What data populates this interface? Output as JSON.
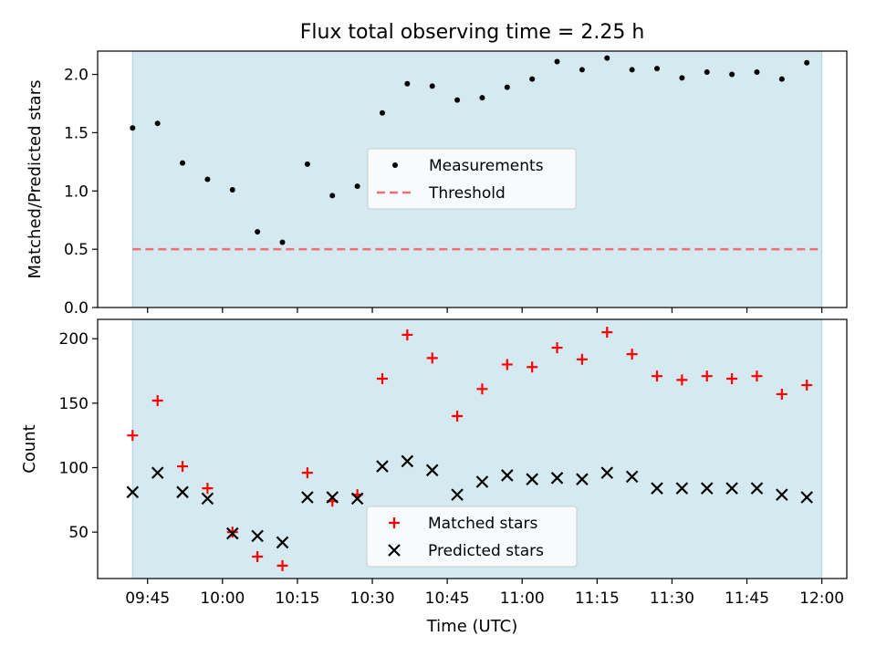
{
  "chart_data": [
    {
      "type": "scatter",
      "title": "Flux total observing time = 2.25 h",
      "ylabel": "Matched/Predicted stars",
      "xlabel": "",
      "xlim": [
        "09:35",
        "12:05"
      ],
      "ylim": [
        0,
        2.2
      ],
      "yticks": [
        0.0,
        0.5,
        1.0,
        1.5,
        2.0
      ],
      "ytick_labels": [
        "0.0",
        "0.5",
        "1.0",
        "1.5",
        "2.0"
      ],
      "xtick_labels": [],
      "shaded_span": [
        "09:42",
        "12:00"
      ],
      "shaded_color": "#d4eaf0",
      "legend": {
        "placement": "center"
      },
      "series": [
        {
          "name": "Measurements",
          "color": "#000000",
          "marker": "dot",
          "x": [
            "09:42",
            "09:47",
            "09:52",
            "09:57",
            "10:02",
            "10:07",
            "10:12",
            "10:17",
            "10:22",
            "10:27",
            "10:32",
            "10:37",
            "10:42",
            "10:47",
            "10:52",
            "10:57",
            "11:02",
            "11:07",
            "11:12",
            "11:17",
            "11:22",
            "11:27",
            "11:32",
            "11:37",
            "11:42",
            "11:47",
            "11:52",
            "11:57"
          ],
          "y": [
            1.54,
            1.58,
            1.24,
            1.1,
            1.01,
            0.65,
            0.56,
            1.23,
            0.96,
            1.04,
            1.67,
            1.92,
            1.9,
            1.78,
            1.8,
            1.89,
            1.96,
            2.11,
            2.04,
            2.14,
            2.04,
            2.05,
            1.97,
            2.02,
            2.0,
            2.02,
            1.96,
            2.1
          ]
        },
        {
          "name": "Threshold",
          "color": "#f07070",
          "line_style": "dashed",
          "x": [
            "09:42",
            "12:00"
          ],
          "y": [
            0.5,
            0.5
          ]
        }
      ]
    },
    {
      "type": "scatter",
      "title": "",
      "ylabel": "Count",
      "xlabel": "Time (UTC)",
      "xlim": [
        "09:35",
        "12:05"
      ],
      "ylim": [
        14,
        215
      ],
      "yticks": [
        50,
        100,
        150,
        200
      ],
      "ytick_labels": [
        "50",
        "100",
        "150",
        "200"
      ],
      "xtick_labels": [
        "09:45",
        "10:00",
        "10:15",
        "10:30",
        "10:45",
        "11:00",
        "11:15",
        "11:30",
        "11:45",
        "12:00"
      ],
      "shaded_span": [
        "09:42",
        "12:00"
      ],
      "shaded_color": "#d4eaf0",
      "legend": {
        "placement": "bottom-center"
      },
      "series": [
        {
          "name": "Matched stars",
          "color": "#ff0000",
          "marker": "plus",
          "x": [
            "09:42",
            "09:47",
            "09:52",
            "09:57",
            "10:02",
            "10:07",
            "10:12",
            "10:17",
            "10:22",
            "10:27",
            "10:32",
            "10:37",
            "10:42",
            "10:47",
            "10:52",
            "10:57",
            "11:02",
            "11:07",
            "11:12",
            "11:17",
            "11:22",
            "11:27",
            "11:32",
            "11:37",
            "11:42",
            "11:47",
            "11:52",
            "11:57"
          ],
          "y": [
            125,
            152,
            101,
            84,
            50,
            31,
            24,
            96,
            74,
            79,
            169,
            203,
            185,
            140,
            161,
            180,
            178,
            193,
            184,
            205,
            188,
            171,
            168,
            171,
            169,
            171,
            157,
            164
          ]
        },
        {
          "name": "Predicted stars",
          "color": "#000000",
          "marker": "x",
          "x": [
            "09:42",
            "09:47",
            "09:52",
            "09:57",
            "10:02",
            "10:07",
            "10:12",
            "10:17",
            "10:22",
            "10:27",
            "10:32",
            "10:37",
            "10:42",
            "10:47",
            "10:52",
            "10:57",
            "11:02",
            "11:07",
            "11:12",
            "11:17",
            "11:22",
            "11:27",
            "11:32",
            "11:37",
            "11:42",
            "11:47",
            "11:52",
            "11:57"
          ],
          "y": [
            81,
            96,
            81,
            76,
            49,
            47,
            42,
            77,
            77,
            76,
            101,
            105,
            98,
            79,
            89,
            94,
            91,
            92,
            91,
            96,
            93,
            84,
            84,
            84,
            84,
            84,
            79,
            77
          ]
        }
      ]
    }
  ]
}
